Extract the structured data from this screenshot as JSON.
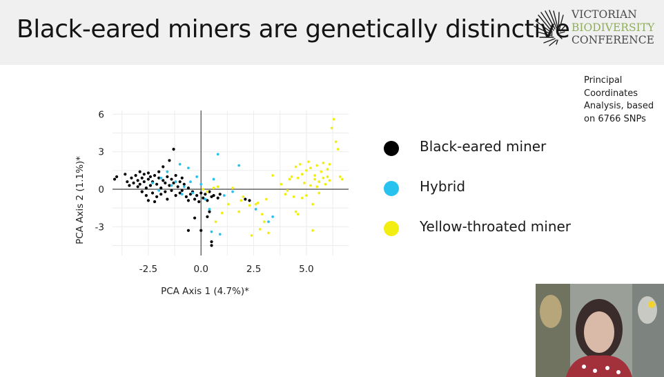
{
  "slide": {
    "title": "Black-eared miners are genetically distinctive",
    "logo": {
      "line1": "VICTORIAN",
      "line2": "BIODIVERSITY",
      "line3": "CONFERENCE"
    },
    "note": "Principal Coordinates Analysis, based on 6766 SNPs"
  },
  "colors": {
    "black_eared": "#000000",
    "hybrid": "#27c3ee",
    "yellow_throated": "#f2ee12",
    "logo_green": "#8fae5a"
  },
  "chart_data": {
    "type": "scatter",
    "xlabel": "PCA Axis 1 (4.7%)*",
    "ylabel": "PCA Axis 2 (1.1%)*",
    "xticks": [
      "-2.5",
      "0.0",
      "2.5",
      "5.0"
    ],
    "yticks": [
      "6",
      "3",
      "0",
      "-3"
    ],
    "xlim": [
      -4.2,
      7.0
    ],
    "ylim": [
      -5.3,
      6.3
    ],
    "grid": true,
    "series": [
      {
        "name": "Black-eared miner",
        "color": "#000000",
        "points": [
          [
            -4.1,
            0.8
          ],
          [
            -4.0,
            1.0
          ],
          [
            -3.6,
            1.2
          ],
          [
            -3.5,
            0.6
          ],
          [
            -3.4,
            0.3
          ],
          [
            -3.3,
            0.9
          ],
          [
            -3.2,
            0.5
          ],
          [
            -3.1,
            1.1
          ],
          [
            -3.0,
            0.7
          ],
          [
            -3.0,
            0.2
          ],
          [
            -2.9,
            1.4
          ],
          [
            -2.9,
            0.4
          ],
          [
            -2.8,
            -0.2
          ],
          [
            -2.8,
            0.9
          ],
          [
            -2.7,
            1.2
          ],
          [
            -2.7,
            0.6
          ],
          [
            -2.6,
            -0.5
          ],
          [
            -2.6,
            0.1
          ],
          [
            -2.5,
            1.3
          ],
          [
            -2.5,
            0.8
          ],
          [
            -2.5,
            -0.9
          ],
          [
            -2.4,
            0.3
          ],
          [
            -2.4,
            1.0
          ],
          [
            -2.3,
            -0.3
          ],
          [
            -2.3,
            0.6
          ],
          [
            -2.2,
            1.1
          ],
          [
            -2.2,
            -1.0
          ],
          [
            -2.1,
            0.4
          ],
          [
            -2.1,
            -0.6
          ],
          [
            -2.0,
            0.9
          ],
          [
            -2.0,
            1.4
          ],
          [
            -1.9,
            0.1
          ],
          [
            -1.9,
            -0.4
          ],
          [
            -1.8,
            0.7
          ],
          [
            -1.8,
            1.8
          ],
          [
            -1.7,
            -0.2
          ],
          [
            -1.7,
            0.5
          ],
          [
            -1.6,
            1.0
          ],
          [
            -1.6,
            -0.8
          ],
          [
            -1.5,
            0.3
          ],
          [
            -1.5,
            2.3
          ],
          [
            -1.4,
            -0.1
          ],
          [
            -1.4,
            0.8
          ],
          [
            -1.3,
            0.5
          ],
          [
            -1.3,
            3.2
          ],
          [
            -1.2,
            1.1
          ],
          [
            -1.2,
            -0.5
          ],
          [
            -1.1,
            0.2
          ],
          [
            -1.0,
            0.6
          ],
          [
            -1.0,
            -0.3
          ],
          [
            -0.9,
            0.9
          ],
          [
            -0.9,
            -0.1
          ],
          [
            -0.8,
            0.4
          ],
          [
            -0.7,
            -0.6
          ],
          [
            -0.6,
            0.1
          ],
          [
            -0.6,
            -0.9
          ],
          [
            -0.5,
            -0.4
          ],
          [
            -0.4,
            -0.2
          ],
          [
            -0.3,
            -0.8
          ],
          [
            -0.2,
            -0.5
          ],
          [
            -0.1,
            -1.0
          ],
          [
            0.0,
            -0.3
          ],
          [
            0.1,
            -0.7
          ],
          [
            0.2,
            -0.4
          ],
          [
            0.3,
            -0.9
          ],
          [
            0.4,
            -0.2
          ],
          [
            0.5,
            -0.6
          ],
          [
            0.6,
            -0.5
          ],
          [
            0.8,
            -0.7
          ],
          [
            0.9,
            -0.4
          ],
          [
            -0.6,
            -3.3
          ],
          [
            -0.3,
            -2.3
          ],
          [
            0.0,
            -3.3
          ],
          [
            0.3,
            -2.2
          ],
          [
            0.5,
            -4.2
          ],
          [
            0.5,
            -4.5
          ],
          [
            0.4,
            -1.8
          ],
          [
            2.1,
            -0.8
          ],
          [
            2.3,
            -0.9
          ],
          [
            -2.8,
            -0.2
          ]
        ]
      },
      {
        "name": "Hybrid",
        "color": "#27c3ee",
        "points": [
          [
            -2.3,
            0.5
          ],
          [
            -2.0,
            -0.1
          ],
          [
            -1.9,
            0.9
          ],
          [
            -1.6,
            1.4
          ],
          [
            -1.4,
            0.3
          ],
          [
            -1.2,
            0.6
          ],
          [
            -1.0,
            2.0
          ],
          [
            -0.9,
            -0.4
          ],
          [
            -0.8,
            0.2
          ],
          [
            -0.6,
            1.7
          ],
          [
            -0.5,
            0.6
          ],
          [
            -0.4,
            -0.3
          ],
          [
            -0.2,
            1.0
          ],
          [
            0.0,
            0.4
          ],
          [
            0.2,
            -0.8
          ],
          [
            0.4,
            -1.6
          ],
          [
            0.5,
            -3.4
          ],
          [
            0.6,
            0.8
          ],
          [
            0.8,
            2.8
          ],
          [
            0.9,
            -3.6
          ],
          [
            1.1,
            -0.5
          ],
          [
            1.8,
            1.9
          ],
          [
            2.6,
            -1.6
          ],
          [
            3.2,
            -2.6
          ],
          [
            3.4,
            -2.2
          ],
          [
            1.5,
            -0.2
          ]
        ]
      },
      {
        "name": "Yellow-throated miner",
        "color": "#f2ee12",
        "points": [
          [
            0.1,
            0.0
          ],
          [
            0.3,
            -0.2
          ],
          [
            0.6,
            0.1
          ],
          [
            0.8,
            0.2
          ],
          [
            0.7,
            -2.6
          ],
          [
            1.0,
            -1.9
          ],
          [
            1.3,
            -1.2
          ],
          [
            1.5,
            0.1
          ],
          [
            1.8,
            -1.8
          ],
          [
            1.9,
            -0.9
          ],
          [
            2.0,
            -0.6
          ],
          [
            2.3,
            -1.3
          ],
          [
            2.4,
            -3.7
          ],
          [
            2.6,
            -1.2
          ],
          [
            2.7,
            -1.1
          ],
          [
            2.8,
            -3.2
          ],
          [
            2.9,
            -2.0
          ],
          [
            3.0,
            -2.6
          ],
          [
            3.1,
            -0.8
          ],
          [
            3.2,
            -3.5
          ],
          [
            3.4,
            1.1
          ],
          [
            3.8,
            0.4
          ],
          [
            4.0,
            -0.4
          ],
          [
            4.1,
            -0.1
          ],
          [
            4.2,
            0.8
          ],
          [
            4.3,
            1.0
          ],
          [
            4.4,
            -0.6
          ],
          [
            4.5,
            -1.8
          ],
          [
            4.5,
            1.8
          ],
          [
            4.6,
            -2.0
          ],
          [
            4.6,
            0.9
          ],
          [
            4.7,
            2.0
          ],
          [
            4.8,
            1.2
          ],
          [
            4.8,
            -0.7
          ],
          [
            4.9,
            0.5
          ],
          [
            5.0,
            1.5
          ],
          [
            5.0,
            -0.5
          ],
          [
            5.1,
            2.2
          ],
          [
            5.2,
            0.3
          ],
          [
            5.2,
            1.7
          ],
          [
            5.3,
            -1.2
          ],
          [
            5.3,
            -3.3
          ],
          [
            5.4,
            0.8
          ],
          [
            5.4,
            1.1
          ],
          [
            5.5,
            0.2
          ],
          [
            5.5,
            1.9
          ],
          [
            5.6,
            0.6
          ],
          [
            5.6,
            -0.3
          ],
          [
            5.7,
            1.4
          ],
          [
            5.8,
            0.9
          ],
          [
            5.8,
            2.1
          ],
          [
            5.9,
            0.4
          ],
          [
            6.0,
            1.6
          ],
          [
            6.0,
            1.0
          ],
          [
            6.1,
            2.0
          ],
          [
            6.1,
            0.7
          ],
          [
            6.2,
            4.9
          ],
          [
            6.3,
            5.6
          ],
          [
            6.4,
            3.8
          ],
          [
            6.5,
            3.2
          ],
          [
            6.6,
            1.0
          ],
          [
            6.7,
            0.8
          ]
        ]
      }
    ]
  }
}
